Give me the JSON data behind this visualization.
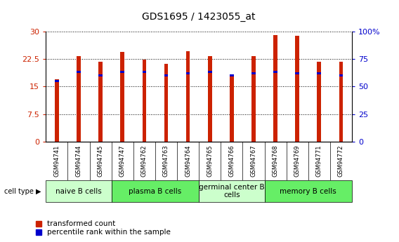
{
  "title": "GDS1695 / 1423055_at",
  "samples": [
    "GSM94741",
    "GSM94744",
    "GSM94745",
    "GSM94747",
    "GSM94762",
    "GSM94763",
    "GSM94764",
    "GSM94765",
    "GSM94766",
    "GSM94767",
    "GSM94768",
    "GSM94769",
    "GSM94771",
    "GSM94772"
  ],
  "transformed_count": [
    17.0,
    23.2,
    21.7,
    24.5,
    22.3,
    21.2,
    24.6,
    23.3,
    18.0,
    23.2,
    29.0,
    28.9,
    21.8,
    21.7
  ],
  "percentile_rank": [
    55,
    63,
    60,
    63,
    63,
    60,
    62,
    63,
    60,
    62,
    63,
    62,
    62,
    60
  ],
  "cell_types": [
    {
      "label": "naive B cells",
      "start": 0,
      "end": 3,
      "color": "#ccffcc"
    },
    {
      "label": "plasma B cells",
      "start": 3,
      "end": 7,
      "color": "#66ee66"
    },
    {
      "label": "germinal center B\ncells",
      "start": 7,
      "end": 10,
      "color": "#ccffcc"
    },
    {
      "label": "memory B cells",
      "start": 10,
      "end": 14,
      "color": "#66ee66"
    }
  ],
  "ylim_left": [
    0,
    30
  ],
  "ylim_right": [
    0,
    100
  ],
  "yticks_left": [
    0,
    7.5,
    15,
    22.5,
    30
  ],
  "yticks_right": [
    0,
    25,
    50,
    75,
    100
  ],
  "ytick_labels_left": [
    "0",
    "7.5",
    "15",
    "22.5",
    "30"
  ],
  "ytick_labels_right": [
    "0",
    "25",
    "50",
    "75",
    "100%"
  ],
  "bar_color_red": "#cc2200",
  "bar_color_blue": "#0000cc",
  "bar_width": 0.18,
  "blue_bar_height": 0.55,
  "legend_red": "transformed count",
  "legend_blue": "percentile rank within the sample",
  "tick_label_color_left": "#cc2200",
  "tick_label_color_right": "#0000cc",
  "sample_bg": "#dddddd",
  "cell_type_label_fontsize": 7.5,
  "sample_label_fontsize": 6.0,
  "title_fontsize": 10,
  "legend_fontsize": 7.5,
  "axis_label_fontsize": 8
}
